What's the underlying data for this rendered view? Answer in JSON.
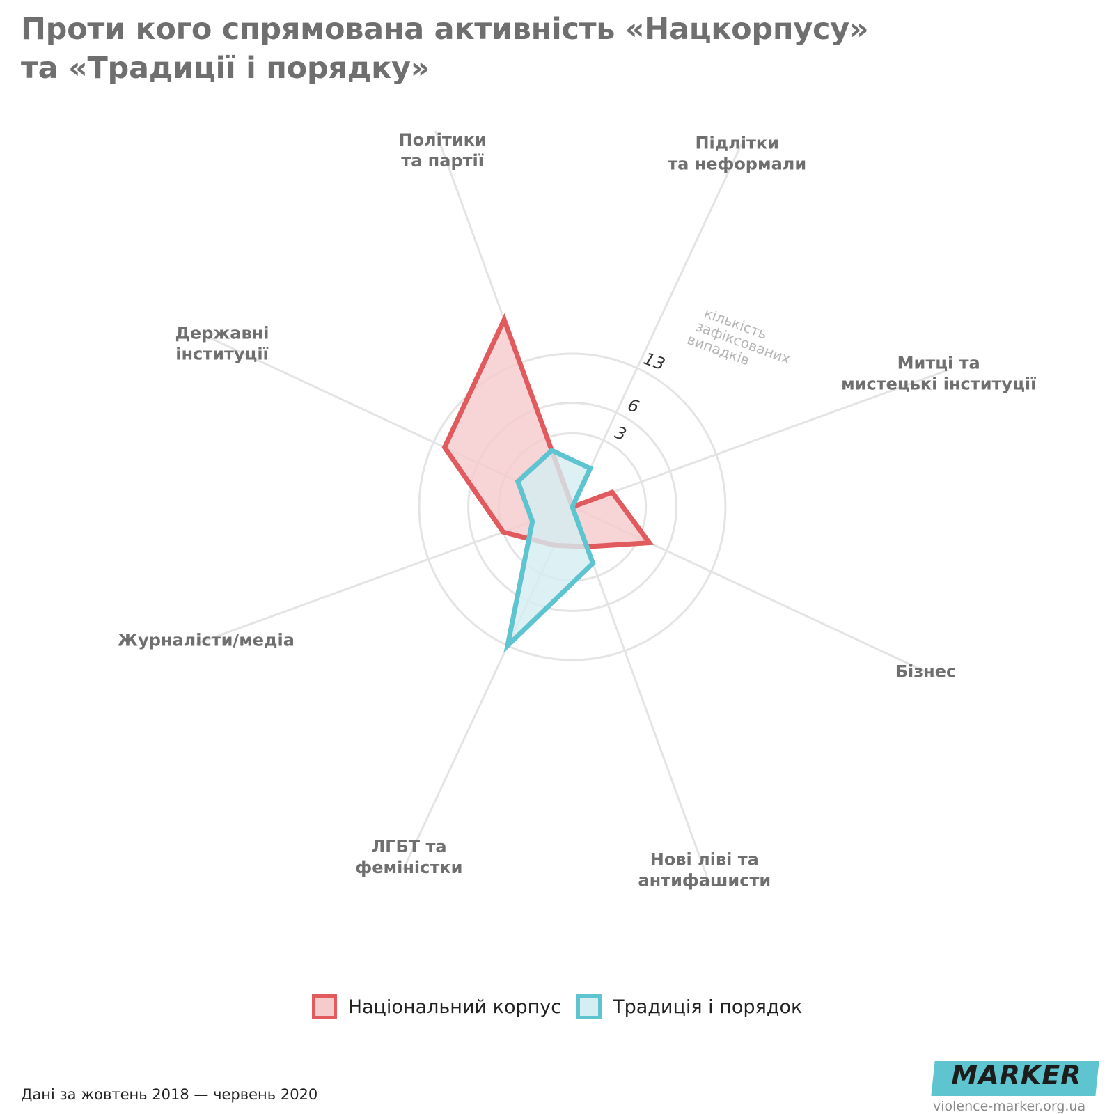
{
  "title": {
    "line1": "Проти кого спрямована активність «Нацкорпусу»",
    "line2": "та «Традиції і порядку»"
  },
  "chart_data": {
    "type": "radar",
    "categories": [
      [
        "Політики",
        "та партії"
      ],
      [
        "Підлітки",
        "та неформали"
      ],
      [
        "Митці та",
        "мистецькі інституції"
      ],
      [
        "Бізнес"
      ],
      [
        "Нові ліві та",
        "антифашисти"
      ],
      [
        "ЛГБТ та",
        "феміністки"
      ],
      [
        "Журналісти/медіа"
      ],
      [
        "Державні",
        "інституції"
      ]
    ],
    "radial_ticks": [
      3,
      6,
      13
    ],
    "radial_tick_labels": [
      "3",
      "6",
      "13"
    ],
    "radial_axis_label": [
      "кількість",
      "зафіксованих",
      "випадків"
    ],
    "scale": "sqrt",
    "series": [
      {
        "name": "Національний корпус",
        "color": "#e05a5e",
        "fill": "#f5cbcc",
        "values": [
          22,
          0,
          1,
          4,
          1,
          1,
          3,
          11
        ]
      },
      {
        "name": "Традиція і порядок",
        "color": "#5ec4d0",
        "fill": "#d4eef1",
        "values": [
          2,
          1,
          0,
          0,
          2,
          13,
          1,
          2
        ]
      }
    ]
  },
  "legend": [
    {
      "label": "Національний корпус",
      "border": "#e05a5e",
      "fill": "#f5cbcc"
    },
    {
      "label": "Традиція і порядок",
      "border": "#5ec4d0",
      "fill": "#d4eef1"
    }
  ],
  "footnote": "Дані за жовтень 2018 — червень 2020",
  "logo": {
    "text": "MARKER",
    "site": "violence-marker.org.ua"
  }
}
